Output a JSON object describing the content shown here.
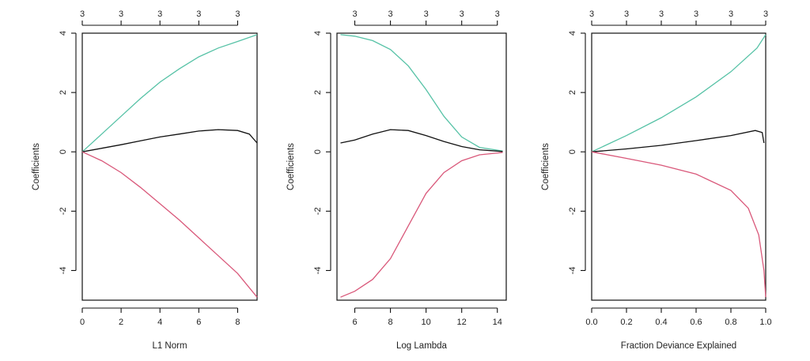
{
  "chart_data": [
    {
      "type": "line",
      "xlabel": "L1 Norm",
      "ylabel": "Coefficients",
      "xlim": [
        0,
        9
      ],
      "ylim": [
        -5,
        4
      ],
      "xticks": [
        0,
        2,
        4,
        6,
        8
      ],
      "yticks": [
        -4,
        -2,
        0,
        2,
        4
      ],
      "top_ticks": [
        0,
        2,
        4,
        6,
        8
      ],
      "top_labels": [
        "3",
        "3",
        "3",
        "3",
        "3"
      ],
      "series": [
        {
          "color": "#56c2a6",
          "points": [
            [
              0,
              0
            ],
            [
              1,
              0.6
            ],
            [
              2,
              1.2
            ],
            [
              3,
              1.8
            ],
            [
              4,
              2.35
            ],
            [
              5,
              2.8
            ],
            [
              6,
              3.2
            ],
            [
              7,
              3.5
            ],
            [
              8,
              3.72
            ],
            [
              9,
              3.95
            ]
          ]
        },
        {
          "color": "#111111",
          "points": [
            [
              0,
              0
            ],
            [
              1,
              0.12
            ],
            [
              2,
              0.24
            ],
            [
              3,
              0.37
            ],
            [
              4,
              0.5
            ],
            [
              5,
              0.6
            ],
            [
              6,
              0.7
            ],
            [
              7,
              0.75
            ],
            [
              8,
              0.72
            ],
            [
              8.6,
              0.6
            ],
            [
              9,
              0.3
            ]
          ]
        },
        {
          "color": "#d9587a",
          "points": [
            [
              0,
              0
            ],
            [
              1,
              -0.3
            ],
            [
              2,
              -0.7
            ],
            [
              3,
              -1.2
            ],
            [
              4,
              -1.75
            ],
            [
              5,
              -2.3
            ],
            [
              6,
              -2.9
            ],
            [
              7,
              -3.5
            ],
            [
              8,
              -4.1
            ],
            [
              9,
              -4.9
            ]
          ]
        }
      ]
    },
    {
      "type": "line",
      "xlabel": "Log Lambda",
      "ylabel": "Coefficients",
      "xlim": [
        5,
        14.5
      ],
      "ylim": [
        -5,
        4
      ],
      "xticks": [
        6,
        8,
        10,
        12,
        14
      ],
      "yticks": [
        -4,
        -2,
        0,
        2,
        4
      ],
      "top_ticks": [
        6,
        8,
        10,
        12,
        14
      ],
      "top_labels": [
        "3",
        "3",
        "3",
        "3",
        "3"
      ],
      "series": [
        {
          "color": "#56c2a6",
          "points": [
            [
              5.2,
              3.95
            ],
            [
              6,
              3.9
            ],
            [
              7,
              3.75
            ],
            [
              8,
              3.45
            ],
            [
              9,
              2.9
            ],
            [
              10,
              2.1
            ],
            [
              11,
              1.2
            ],
            [
              12,
              0.5
            ],
            [
              13,
              0.15
            ],
            [
              14.3,
              0.03
            ]
          ]
        },
        {
          "color": "#111111",
          "points": [
            [
              5.2,
              0.3
            ],
            [
              6,
              0.4
            ],
            [
              7,
              0.6
            ],
            [
              8,
              0.75
            ],
            [
              9,
              0.72
            ],
            [
              10,
              0.55
            ],
            [
              11,
              0.35
            ],
            [
              12,
              0.18
            ],
            [
              13,
              0.07
            ],
            [
              14.3,
              0.01
            ]
          ]
        },
        {
          "color": "#d9587a",
          "points": [
            [
              5.2,
              -4.9
            ],
            [
              6,
              -4.7
            ],
            [
              7,
              -4.3
            ],
            [
              8,
              -3.6
            ],
            [
              9,
              -2.5
            ],
            [
              10,
              -1.4
            ],
            [
              11,
              -0.7
            ],
            [
              12,
              -0.3
            ],
            [
              13,
              -0.1
            ],
            [
              14.3,
              -0.02
            ]
          ]
        }
      ]
    },
    {
      "type": "line",
      "xlabel": "Fraction Deviance Explained",
      "ylabel": "Coefficients",
      "xlim": [
        0,
        1
      ],
      "ylim": [
        -5,
        4
      ],
      "xticks": [
        0.0,
        0.2,
        0.4,
        0.6,
        0.8,
        1.0
      ],
      "xtick_labels": [
        "0.0",
        "0.2",
        "0.4",
        "0.6",
        "0.8",
        "1.0"
      ],
      "yticks": [
        -4,
        -2,
        0,
        2,
        4
      ],
      "top_ticks": [
        0.0,
        0.2,
        0.4,
        0.6,
        0.8,
        1.0
      ],
      "top_labels": [
        "3",
        "3",
        "3",
        "3",
        "3",
        "3"
      ],
      "series": [
        {
          "color": "#56c2a6",
          "points": [
            [
              0,
              0
            ],
            [
              0.2,
              0.55
            ],
            [
              0.4,
              1.15
            ],
            [
              0.6,
              1.85
            ],
            [
              0.8,
              2.7
            ],
            [
              0.95,
              3.5
            ],
            [
              1.0,
              3.95
            ]
          ]
        },
        {
          "color": "#111111",
          "points": [
            [
              0,
              0
            ],
            [
              0.2,
              0.1
            ],
            [
              0.4,
              0.22
            ],
            [
              0.6,
              0.38
            ],
            [
              0.8,
              0.55
            ],
            [
              0.94,
              0.72
            ],
            [
              0.98,
              0.65
            ],
            [
              0.99,
              0.3
            ]
          ]
        },
        {
          "color": "#d9587a",
          "points": [
            [
              0,
              0
            ],
            [
              0.2,
              -0.22
            ],
            [
              0.4,
              -0.45
            ],
            [
              0.6,
              -0.75
            ],
            [
              0.8,
              -1.3
            ],
            [
              0.9,
              -1.9
            ],
            [
              0.96,
              -2.8
            ],
            [
              0.99,
              -4.0
            ],
            [
              1.0,
              -4.9
            ]
          ]
        }
      ]
    }
  ]
}
